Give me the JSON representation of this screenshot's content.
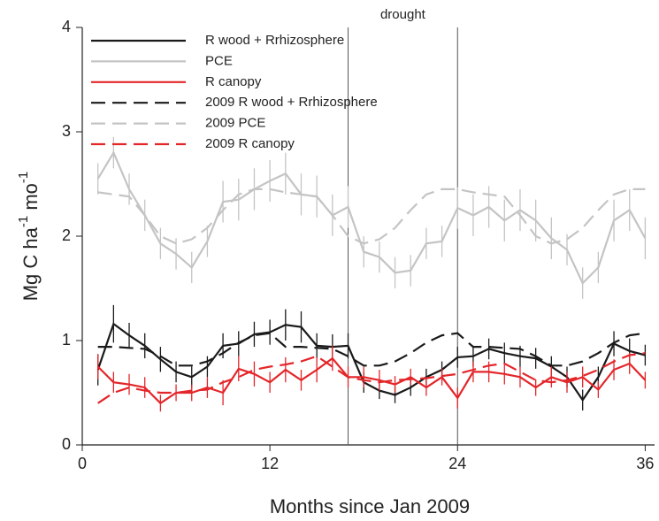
{
  "chart_data": {
    "type": "line",
    "xlabel": "Months since Jan 2009",
    "ylabel_parts": [
      "Mg C ha",
      "-1",
      " mo",
      "-1"
    ],
    "annotation": "drought",
    "vlines": [
      17,
      24
    ],
    "xlim": [
      0,
      36.6
    ],
    "ylim": [
      0,
      4
    ],
    "xticks": [
      0,
      12,
      24,
      36
    ],
    "yticks": [
      0,
      1,
      2,
      3,
      4
    ],
    "grid": false,
    "legend": "upper left",
    "x": [
      1,
      2,
      3,
      4,
      5,
      6,
      7,
      8,
      9,
      10,
      11,
      12,
      13,
      14,
      15,
      16,
      17,
      18,
      19,
      20,
      21,
      22,
      23,
      24,
      25,
      26,
      27,
      28,
      29,
      30,
      31,
      32,
      33,
      34,
      35,
      36
    ],
    "series": [
      {
        "name": "R wood + Rrhizosphere",
        "color": "#1a1a1a",
        "dashed": false,
        "values": [
          0.72,
          1.16,
          1.05,
          0.95,
          0.82,
          0.7,
          0.65,
          0.75,
          0.95,
          0.97,
          1.06,
          1.08,
          1.15,
          1.13,
          0.95,
          0.94,
          0.95,
          0.6,
          0.52,
          0.48,
          0.55,
          0.65,
          0.72,
          0.84,
          0.85,
          0.92,
          0.88,
          0.85,
          0.83,
          0.75,
          0.65,
          0.43,
          0.65,
          0.97,
          0.9,
          0.86
        ],
        "errors": [
          0.15,
          0.18,
          0.12,
          0.12,
          0.12,
          0.1,
          0.1,
          0.1,
          0.12,
          0.12,
          0.12,
          0.12,
          0.15,
          0.15,
          0.12,
          0.12,
          0.12,
          0.1,
          0.08,
          0.08,
          0.08,
          0.08,
          0.08,
          0.1,
          0.1,
          0.1,
          0.1,
          0.1,
          0.1,
          0.1,
          0.1,
          0.1,
          0.1,
          0.12,
          0.12,
          0.1
        ]
      },
      {
        "name": "PCE",
        "color": "#c4c4c4",
        "dashed": false,
        "values": [
          2.55,
          2.8,
          2.45,
          2.2,
          1.93,
          1.83,
          1.7,
          1.95,
          2.33,
          2.35,
          2.45,
          2.53,
          2.6,
          2.4,
          2.38,
          2.2,
          2.28,
          1.85,
          1.8,
          1.65,
          1.67,
          1.93,
          1.95,
          2.27,
          2.2,
          2.28,
          2.15,
          2.25,
          2.15,
          1.98,
          1.87,
          1.55,
          1.7,
          2.15,
          2.25,
          1.98
        ],
        "errors": [
          0.15,
          0.15,
          0.15,
          0.15,
          0.15,
          0.15,
          0.15,
          0.15,
          0.2,
          0.2,
          0.2,
          0.2,
          0.2,
          0.2,
          0.2,
          0.2,
          0.2,
          0.15,
          0.15,
          0.15,
          0.15,
          0.15,
          0.15,
          0.2,
          0.2,
          0.2,
          0.2,
          0.2,
          0.2,
          0.2,
          0.15,
          0.15,
          0.15,
          0.2,
          0.2,
          0.2
        ]
      },
      {
        "name": "R canopy",
        "color": "#e3262a",
        "dashed": false,
        "values": [
          0.75,
          0.6,
          0.58,
          0.55,
          0.4,
          0.5,
          0.5,
          0.55,
          0.5,
          0.73,
          0.68,
          0.6,
          0.72,
          0.62,
          0.72,
          0.83,
          0.65,
          0.65,
          0.62,
          0.58,
          0.65,
          0.55,
          0.65,
          0.45,
          0.7,
          0.7,
          0.68,
          0.65,
          0.55,
          0.65,
          0.6,
          0.65,
          0.53,
          0.72,
          0.78,
          0.62
        ],
        "errors": [
          0.12,
          0.1,
          0.1,
          0.1,
          0.08,
          0.08,
          0.08,
          0.1,
          0.12,
          0.12,
          0.12,
          0.1,
          0.12,
          0.1,
          0.12,
          0.12,
          0.1,
          0.1,
          0.1,
          0.08,
          0.08,
          0.08,
          0.08,
          0.1,
          0.1,
          0.1,
          0.1,
          0.1,
          0.08,
          0.1,
          0.1,
          0.1,
          0.08,
          0.1,
          0.1,
          0.08
        ]
      },
      {
        "name": "2009 R wood + Rrhizosphere",
        "color": "#1a1a1a",
        "dashed": true,
        "values": [
          0.94,
          0.94,
          0.93,
          0.92,
          0.85,
          0.76,
          0.76,
          0.8,
          0.88,
          0.98,
          1.05,
          1.07,
          0.94,
          0.94,
          0.93,
          0.92,
          0.85,
          0.76,
          0.76,
          0.8,
          0.88,
          0.98,
          1.05,
          1.07,
          0.94,
          0.94,
          0.93,
          0.92,
          0.85,
          0.76,
          0.76,
          0.8,
          0.88,
          0.98,
          1.05,
          1.07
        ]
      },
      {
        "name": "2009 PCE",
        "color": "#c4c4c4",
        "dashed": true,
        "values": [
          2.42,
          2.4,
          2.38,
          2.2,
          2.0,
          1.93,
          1.97,
          2.08,
          2.25,
          2.4,
          2.45,
          2.45,
          2.42,
          2.4,
          2.38,
          2.2,
          2.0,
          1.93,
          1.97,
          2.08,
          2.25,
          2.4,
          2.45,
          2.45,
          2.42,
          2.4,
          2.38,
          2.2,
          2.0,
          1.93,
          1.97,
          2.08,
          2.25,
          2.4,
          2.45,
          2.45
        ]
      },
      {
        "name": "2009 R canopy",
        "color": "#e3262a",
        "dashed": true,
        "values": [
          0.4,
          0.5,
          0.55,
          0.52,
          0.5,
          0.5,
          0.52,
          0.53,
          0.6,
          0.65,
          0.72,
          0.75,
          0.77,
          0.8,
          0.85,
          0.75,
          0.65,
          0.62,
          0.6,
          0.62,
          0.63,
          0.64,
          0.66,
          0.68,
          0.72,
          0.76,
          0.78,
          0.7,
          0.62,
          0.6,
          0.62,
          0.66,
          0.72,
          0.8,
          0.86,
          0.88
        ]
      }
    ]
  }
}
